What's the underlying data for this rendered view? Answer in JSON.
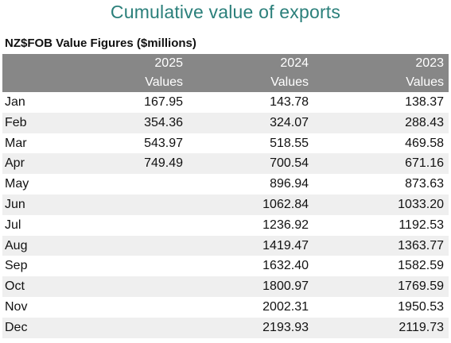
{
  "title": "Cumulative value of exports",
  "subtitle": "NZ$FOB Value Figures ($millions)",
  "columns": [
    {
      "year": "2025",
      "label": "Values"
    },
    {
      "year": "2024",
      "label": "Values"
    },
    {
      "year": "2023",
      "label": "Values"
    }
  ],
  "rows": [
    {
      "month": "Jan",
      "v2025": "167.95",
      "v2024": "143.78",
      "v2023": "138.37"
    },
    {
      "month": "Feb",
      "v2025": "354.36",
      "v2024": "324.07",
      "v2023": "288.43"
    },
    {
      "month": "Mar",
      "v2025": "543.97",
      "v2024": "518.55",
      "v2023": "469.58"
    },
    {
      "month": "Apr",
      "v2025": "749.49",
      "v2024": "700.54",
      "v2023": "671.16"
    },
    {
      "month": "May",
      "v2025": "",
      "v2024": "896.94",
      "v2023": "873.63"
    },
    {
      "month": "Jun",
      "v2025": "",
      "v2024": "1062.84",
      "v2023": "1033.20"
    },
    {
      "month": "Jul",
      "v2025": "",
      "v2024": "1236.92",
      "v2023": "1192.53"
    },
    {
      "month": "Aug",
      "v2025": "",
      "v2024": "1419.47",
      "v2023": "1363.77"
    },
    {
      "month": "Sep",
      "v2025": "",
      "v2024": "1632.40",
      "v2023": "1582.59"
    },
    {
      "month": "Oct",
      "v2025": "",
      "v2024": "1800.97",
      "v2023": "1769.59"
    },
    {
      "month": "Nov",
      "v2025": "",
      "v2024": "2002.31",
      "v2023": "1950.53"
    },
    {
      "month": "Dec",
      "v2025": "",
      "v2024": "2193.93",
      "v2023": "2119.73"
    }
  ]
}
